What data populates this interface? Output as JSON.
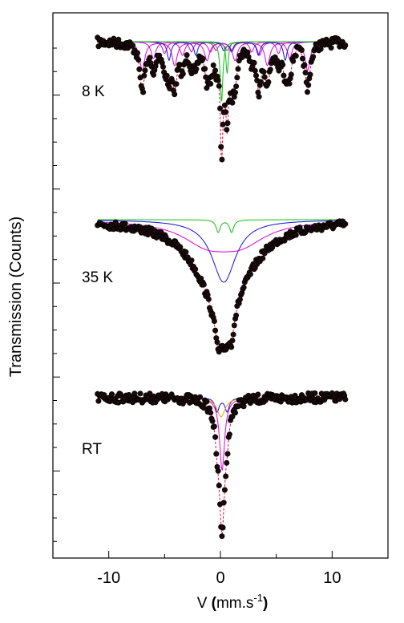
{
  "chart_data": {
    "type": "scatter",
    "title": "",
    "xlabel_prefix": "V ",
    "xlabel_paren_open": "(",
    "xlabel_unit": "mm.s",
    "xlabel_sup": "-1",
    "xlabel_paren_close": ")",
    "ylabel": "Transmission (Counts)",
    "xlim": [
      -15,
      15
    ],
    "x_ticks": [
      -10,
      0,
      10
    ],
    "x_tick_labels": [
      "-10",
      "0",
      "10"
    ],
    "grid": false,
    "legend": "none",
    "y_units": "normalized",
    "colors": {
      "data": "#1a0a0a",
      "data_edge": "#000000",
      "fit_total": "#e0103a",
      "magenta": "#e000e0",
      "green": "#10c010",
      "blue": "#1010e0",
      "orange": "#f0a000",
      "axis": "#000000"
    },
    "panels": [
      {
        "label": "8 K",
        "baseline": 1.0,
        "components": [
          {
            "color": "magenta",
            "sextet": [
              -7.0,
              -4.1,
              -1.2,
              1.3,
              4.2,
              7.8
            ],
            "depths": [
              0.34,
              0.28,
              0.22,
              0.22,
              0.28,
              0.34
            ],
            "width": 0.55
          },
          {
            "color": "magenta",
            "sextet": [
              -6.0,
              -3.4,
              -0.9,
              1.0,
              3.5,
              6.2
            ],
            "depths": [
              0.2,
              0.16,
              0.12,
              0.12,
              0.16,
              0.2
            ],
            "width": 0.5
          },
          {
            "color": "magenta",
            "sextet": [
              -5.0,
              -2.6,
              -0.4,
              0.6,
              2.8,
              5.2
            ],
            "depths": [
              0.14,
              0.12,
              0.1,
              0.1,
              0.12,
              0.14
            ],
            "width": 0.45
          },
          {
            "color": "blue",
            "sextet": [
              -4.6,
              -2.2,
              0.3,
              1.0,
              3.4,
              5.8
            ],
            "depths": [
              0.22,
              0.16,
              0.1,
              0.1,
              0.16,
              0.22
            ],
            "width": 0.4
          },
          {
            "color": "green",
            "sextet": [
              0.1
            ],
            "depths": [
              0.72
            ],
            "width": 0.28
          },
          {
            "color": "green",
            "sextet": [
              0.6
            ],
            "depths": [
              0.38
            ],
            "width": 0.25
          }
        ]
      },
      {
        "label": "35 K",
        "baseline": 1.0,
        "components": [
          {
            "color": "blue",
            "sextet": [
              0.3
            ],
            "depths": [
              0.6
            ],
            "width": 2.6
          },
          {
            "color": "magenta",
            "sextet": [
              -1.2,
              1.8
            ],
            "depths": [
              0.2,
              0.2
            ],
            "width": 5.5
          },
          {
            "color": "green",
            "sextet": [
              -0.2,
              1.0
            ],
            "depths": [
              0.12,
              0.12
            ],
            "width": 0.45
          }
        ]
      },
      {
        "label": "RT",
        "baseline": 1.0,
        "components": [
          {
            "color": "magenta",
            "sextet": [
              0.15
            ],
            "depths": [
              0.95
            ],
            "width": 0.55
          },
          {
            "color": "blue",
            "sextet": [
              -0.3,
              0.6
            ],
            "depths": [
              0.18,
              0.18
            ],
            "width": 0.45
          },
          {
            "color": "orange",
            "sextet": [
              0.05
            ],
            "depths": [
              0.25
            ],
            "width": 0.9
          }
        ]
      }
    ],
    "data_x_range": [
      -11,
      11.2
    ]
  }
}
